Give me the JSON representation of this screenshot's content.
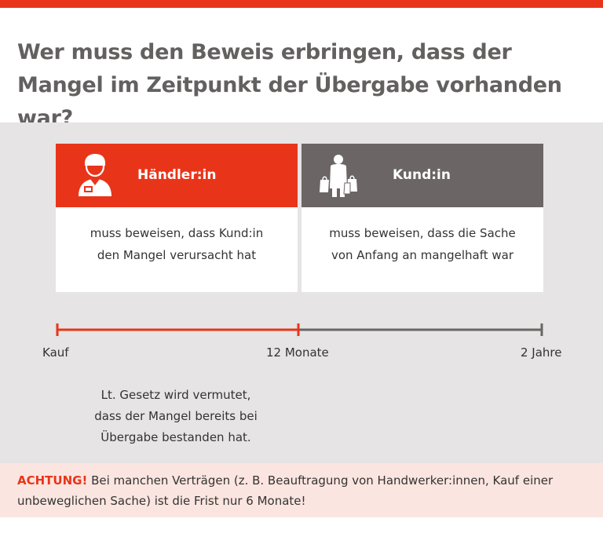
{
  "title": "Wer muss den Beweis erbringen, dass der Mangel im Zeitpunkt der Übergabe vorhanden war?",
  "colors": {
    "accent": "#e8351a",
    "dark_grey": "#6b6565",
    "bg_grey": "#e6e4e4",
    "warn_bg": "#fbe5e0"
  },
  "columns": {
    "left": {
      "icon": "merchant-icon",
      "heading": "Händler:in",
      "text_line1": "muss beweisen, dass Kund:in",
      "text_line2": "den Mangel verursacht hat"
    },
    "right": {
      "icon": "shopper-icon",
      "heading": "Kund:in",
      "text_line1": "muss beweisen, dass die Sache",
      "text_line2": "von Anfang an mangelhaft war"
    }
  },
  "timeline": {
    "start_label": "Kauf",
    "mid_label": "12 Monate",
    "end_label": "2 Jahre"
  },
  "note": {
    "line1": "Lt. Gesetz wird vermutet,",
    "line2": "dass der Mangel bereits bei",
    "line3": "Übergabe bestanden hat."
  },
  "warning": {
    "label": "ACHTUNG!",
    "text": " Bei manchen Verträgen (z. B. Beauftragung von Handwerker:innen, Kauf einer unbeweglichen Sache) ist die Frist nur 6 Monate!"
  }
}
